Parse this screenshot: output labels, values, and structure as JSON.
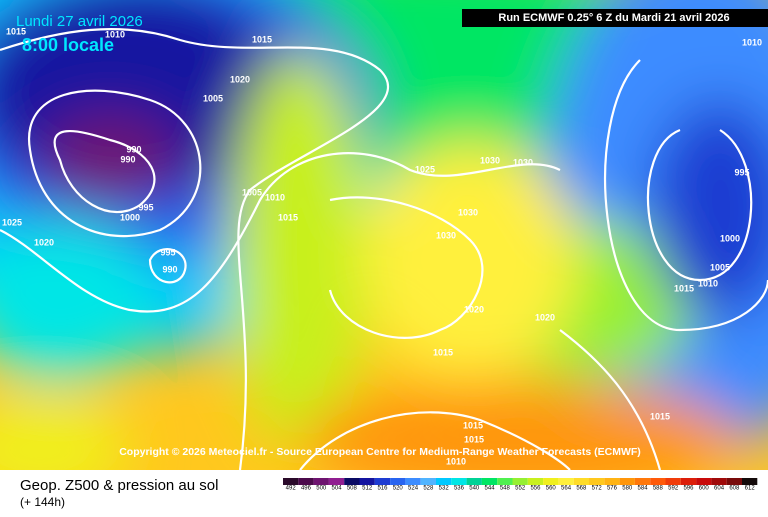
{
  "header": {
    "date": "Lundi 27 avril 2026",
    "time": "8:00 locale",
    "run": "Run ECMWF 0.25° 6 Z du Mardi 21 avril 2026"
  },
  "copyright": "Copyright © 2026 Meteociel.fr - Source European Centre for Medium-Range Weather Forecasts (ECMWF)",
  "isobar_labels": [
    "1015",
    "1010",
    "1015",
    "1020",
    "1005",
    "1010",
    "990",
    "990",
    "995",
    "1000",
    "1005",
    "1010",
    "1015",
    "1025",
    "1030",
    "1030",
    "1030",
    "1030",
    "1025",
    "1020",
    "995",
    "990",
    "995",
    "1000",
    "1005",
    "1010",
    "1015",
    "1020",
    "1020",
    "1015",
    "1015",
    "1015",
    "1015",
    "1010"
  ],
  "footer": {
    "title": "Geop. Z500 & pression au sol",
    "lead": "(+ 144h)"
  },
  "scale": {
    "values": [
      492,
      496,
      500,
      504,
      508,
      512,
      516,
      520,
      524,
      528,
      532,
      536,
      540,
      544,
      548,
      552,
      556,
      560,
      564,
      568,
      572,
      576,
      580,
      584,
      588,
      592,
      596,
      600,
      604,
      608,
      612
    ],
    "colors": [
      "#2a0a2a",
      "#4b0a4b",
      "#6e1470",
      "#901e91",
      "#0a0a64",
      "#1414a0",
      "#1e3cd2",
      "#2864f0",
      "#3c8cff",
      "#50b4ff",
      "#00c8ff",
      "#00e6e6",
      "#00d296",
      "#00e664",
      "#50f050",
      "#96f032",
      "#c8f01e",
      "#f0f01e",
      "#fff03c",
      "#ffdc28",
      "#ffc81e",
      "#ffb414",
      "#ff960a",
      "#ff780a",
      "#ff5a0a",
      "#f03c0a",
      "#dc1e0a",
      "#c80a0a",
      "#a00a0a",
      "#780a0a",
      "#140a0a"
    ]
  }
}
